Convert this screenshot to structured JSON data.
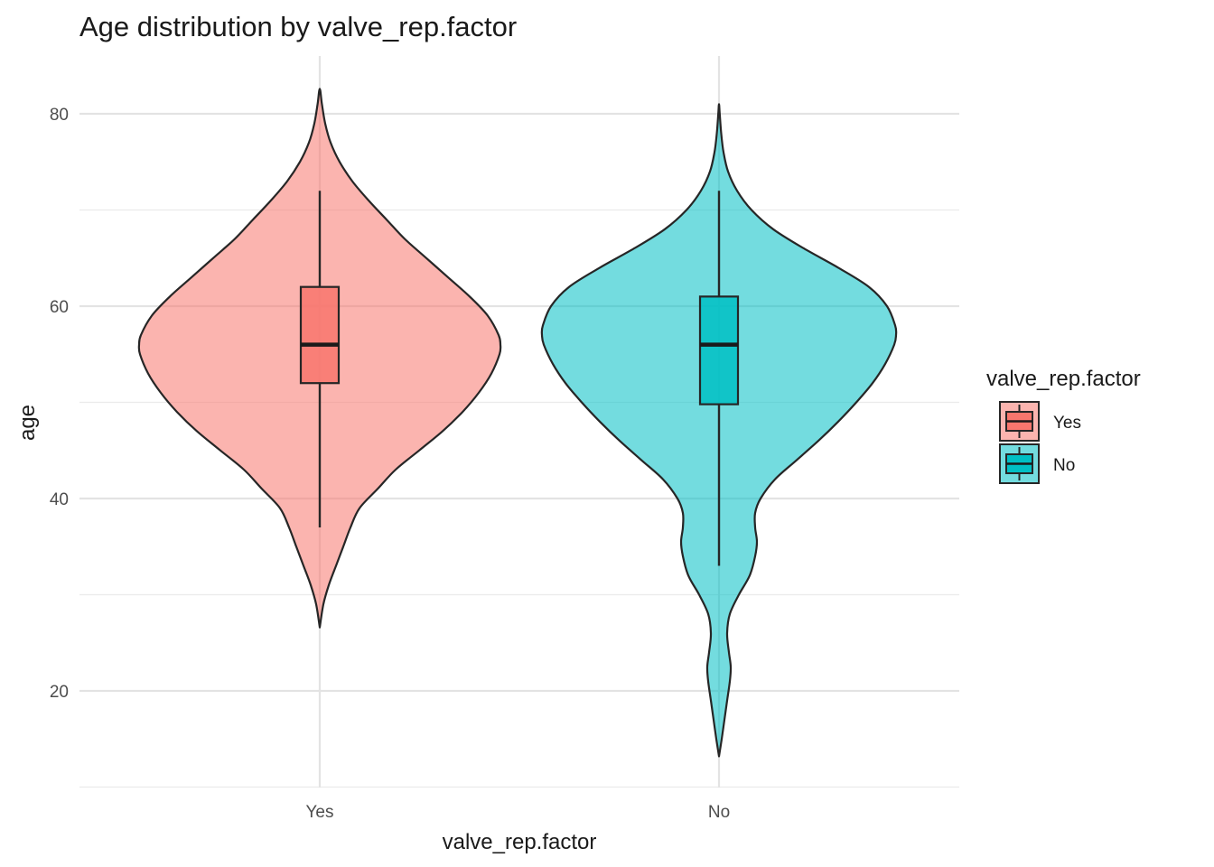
{
  "chart_data": {
    "type": "violin",
    "title": "Age distribution by valve_rep.factor",
    "xlabel": "valve_rep.factor",
    "ylabel": "age",
    "categories": [
      "Yes",
      "No"
    ],
    "ylim": [
      10,
      85
    ],
    "y_ticks": [
      20,
      40,
      60,
      80
    ],
    "grid": true,
    "legend": {
      "title": "valve_rep.factor",
      "position": "right",
      "entries": [
        {
          "label": "Yes",
          "color": "#F8766D"
        },
        {
          "label": "No",
          "color": "#00BFC4"
        }
      ]
    },
    "series": [
      {
        "category": "Yes",
        "color": "#F8766D",
        "violin": {
          "ymin": 26.6,
          "ymax": 82.6,
          "profile": [
            [
              26.6,
              0.0
            ],
            [
              29,
              0.02
            ],
            [
              31,
              0.05
            ],
            [
              33,
              0.09
            ],
            [
              35,
              0.13
            ],
            [
              37,
              0.17
            ],
            [
              39,
              0.22
            ],
            [
              41,
              0.32
            ],
            [
              43,
              0.42
            ],
            [
              45,
              0.55
            ],
            [
              47,
              0.68
            ],
            [
              49,
              0.79
            ],
            [
              51,
              0.88
            ],
            [
              53,
              0.95
            ],
            [
              55,
              0.995
            ],
            [
              56,
              1.0
            ],
            [
              57,
              0.99
            ],
            [
              59,
              0.93
            ],
            [
              61,
              0.83
            ],
            [
              63,
              0.71
            ],
            [
              65,
              0.59
            ],
            [
              67,
              0.47
            ],
            [
              69,
              0.37
            ],
            [
              71,
              0.27
            ],
            [
              73,
              0.18
            ],
            [
              75,
              0.11
            ],
            [
              77,
              0.06
            ],
            [
              79,
              0.03
            ],
            [
              81,
              0.012
            ],
            [
              82.6,
              0.0
            ]
          ]
        },
        "box": {
          "lower_whisker": 37,
          "q1": 52,
          "median": 56,
          "q3": 62,
          "upper_whisker": 72
        }
      },
      {
        "category": "No",
        "color": "#00BFC4",
        "violin": {
          "ymin": 13.2,
          "ymax": 81,
          "profile": [
            [
              13.2,
              0.0
            ],
            [
              15,
              0.015
            ],
            [
              17,
              0.03
            ],
            [
              19,
              0.045
            ],
            [
              21,
              0.06
            ],
            [
              22.5,
              0.065
            ],
            [
              24,
              0.055
            ],
            [
              26,
              0.045
            ],
            [
              28,
              0.06
            ],
            [
              30,
              0.11
            ],
            [
              32,
              0.17
            ],
            [
              34,
              0.2
            ],
            [
              35.5,
              0.21
            ],
            [
              37,
              0.2
            ],
            [
              38.5,
              0.2
            ],
            [
              40,
              0.23
            ],
            [
              42,
              0.31
            ],
            [
              44,
              0.43
            ],
            [
              46,
              0.55
            ],
            [
              48,
              0.66
            ],
            [
              50,
              0.76
            ],
            [
              52,
              0.85
            ],
            [
              54,
              0.92
            ],
            [
              56,
              0.97
            ],
            [
              57,
              0.98
            ],
            [
              58,
              0.975
            ],
            [
              60,
              0.93
            ],
            [
              62,
              0.83
            ],
            [
              64,
              0.66
            ],
            [
              66,
              0.47
            ],
            [
              68,
              0.3
            ],
            [
              70,
              0.18
            ],
            [
              72,
              0.1
            ],
            [
              74,
              0.05
            ],
            [
              76,
              0.025
            ],
            [
              78,
              0.012
            ],
            [
              80,
              0.004
            ],
            [
              81,
              0.0
            ]
          ]
        },
        "box": {
          "lower_whisker": 33,
          "q1": 49.8,
          "median": 56,
          "q3": 61,
          "upper_whisker": 72
        }
      }
    ]
  }
}
